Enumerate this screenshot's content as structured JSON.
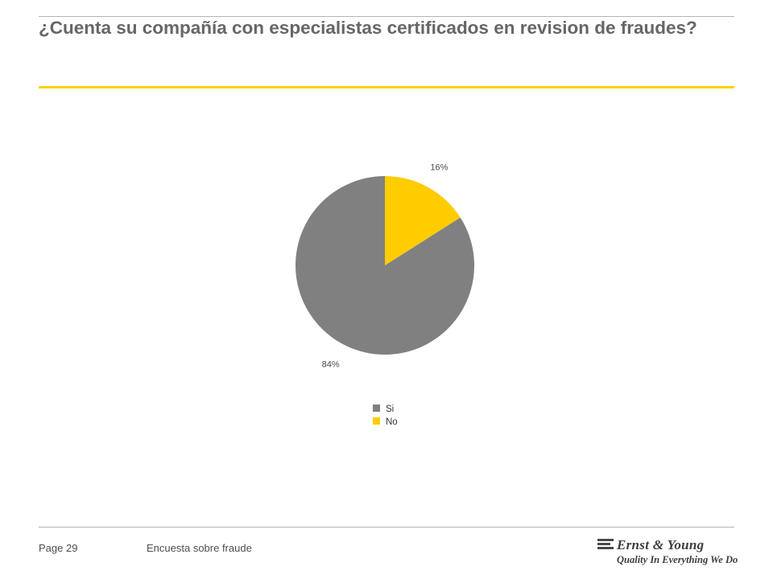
{
  "slide": {
    "title": "¿Cuenta su compañía con especialistas certificados en revision de fraudes?"
  },
  "footer": {
    "page_label": "Page 29",
    "document_name": "Encuesta sobre fraude"
  },
  "logo": {
    "company": "Ernst & Young",
    "tagline": "Quality In Everything We Do"
  },
  "colors": {
    "accent": "#ffd200",
    "text": "#666666",
    "slice_si": "#808080",
    "slice_no": "#ffcc00"
  },
  "chart_data": {
    "type": "pie",
    "title": "",
    "start_angle_deg": 0,
    "direction": "clockwise",
    "legend_position": "bottom",
    "slices": [
      {
        "name": "No",
        "value": 16,
        "label": "16%",
        "color": "#ffcc00"
      },
      {
        "name": "Si",
        "value": 84,
        "label": "84%",
        "color": "#808080"
      }
    ],
    "legend": [
      {
        "name": "Si",
        "color": "#808080"
      },
      {
        "name": "No",
        "color": "#ffcc00"
      }
    ]
  }
}
